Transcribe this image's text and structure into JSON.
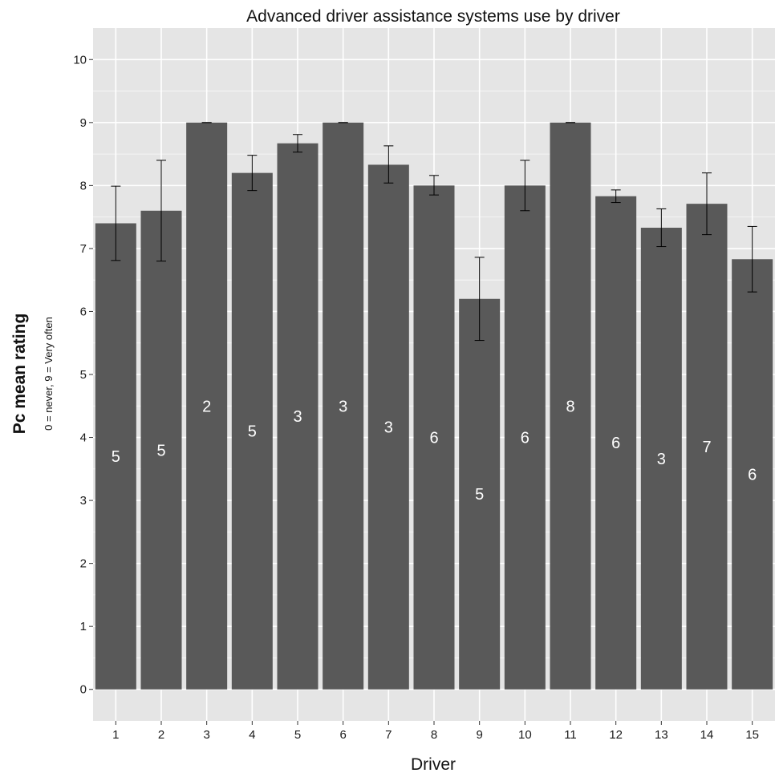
{
  "chart_data": {
    "type": "bar",
    "title": "Advanced driver assistance systems use by driver",
    "xlabel": "Driver",
    "ylabel": "Pc mean rating",
    "ylabel_sub": "0 = never, 9 = Very often",
    "categories": [
      "1",
      "2",
      "3",
      "4",
      "5",
      "6",
      "7",
      "8",
      "9",
      "10",
      "11",
      "12",
      "13",
      "14",
      "15"
    ],
    "values": [
      7.4,
      7.6,
      9.0,
      8.2,
      8.67,
      9.0,
      8.33,
      8.0,
      6.2,
      8.0,
      9.0,
      7.83,
      7.33,
      7.71,
      6.83
    ],
    "error_low": [
      6.81,
      6.8,
      9.0,
      7.92,
      8.53,
      9.0,
      8.04,
      7.85,
      5.54,
      7.6,
      9.0,
      7.73,
      7.03,
      7.22,
      6.31
    ],
    "error_high": [
      7.99,
      8.4,
      9.0,
      8.48,
      8.81,
      9.0,
      8.63,
      8.16,
      6.86,
      8.4,
      9.0,
      7.93,
      7.63,
      8.2,
      7.35
    ],
    "bar_labels": [
      "5",
      "5",
      "2",
      "5",
      "3",
      "3",
      "3",
      "6",
      "5",
      "6",
      "8",
      "6",
      "3",
      "7",
      "6"
    ],
    "y_ticks": [
      0,
      1,
      2,
      3,
      4,
      5,
      6,
      7,
      8,
      9,
      10
    ],
    "ylim": [
      -0.5,
      10.5
    ],
    "grid": true,
    "legend": "none",
    "colors": {
      "bar": "#595959",
      "panel_background": "#e5e5e5",
      "grid": "#ffffff",
      "error_bar": "#000000",
      "bar_label": "#ffffff"
    }
  }
}
